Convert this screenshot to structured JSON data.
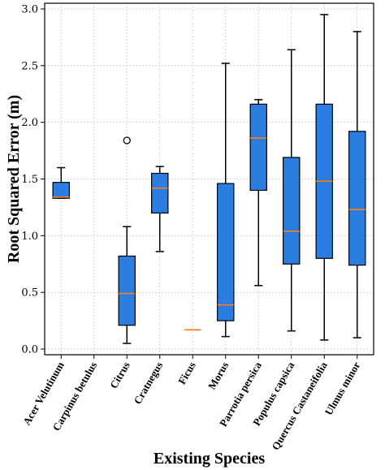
{
  "chart_data": {
    "type": "box",
    "title": "",
    "xlabel": "Existing Species",
    "ylabel": "Root Squared Error (m)",
    "ylim": [
      -0.05,
      3.05
    ],
    "yticks": [
      "0.0",
      "0.5",
      "1.0",
      "1.5",
      "2.0",
      "2.5",
      "3.0"
    ],
    "grid": true,
    "colors": {
      "box_fill": "#2b7de1",
      "median": "#ff7f0e",
      "grid": "#c8c8c8"
    },
    "categories": [
      "Acer Velutinum",
      "Carpinus betulus",
      "Citrus",
      "Cratnegus",
      "Ficus",
      "Morus",
      "Parrotia persica",
      "Populus capsica",
      "Quercus Castaneifolia",
      "Ulmus minor"
    ],
    "boxes": [
      {
        "whislo": 1.33,
        "q1": 1.33,
        "med": 1.34,
        "q3": 1.47,
        "whishi": 1.6,
        "fliers": []
      },
      null,
      {
        "whislo": 0.05,
        "q1": 0.21,
        "med": 0.49,
        "q3": 0.82,
        "whishi": 1.08,
        "fliers": [
          1.84
        ]
      },
      {
        "whislo": 0.86,
        "q1": 1.2,
        "med": 1.42,
        "q3": 1.55,
        "whishi": 1.61,
        "fliers": []
      },
      {
        "whislo": 0.17,
        "q1": 0.17,
        "med": 0.17,
        "q3": 0.17,
        "whishi": 0.17,
        "fliers": []
      },
      {
        "whislo": 0.11,
        "q1": 0.25,
        "med": 0.39,
        "q3": 1.46,
        "whishi": 2.52,
        "fliers": []
      },
      {
        "whislo": 0.56,
        "q1": 1.4,
        "med": 1.86,
        "q3": 2.16,
        "whishi": 2.2,
        "fliers": []
      },
      {
        "whislo": 0.16,
        "q1": 0.75,
        "med": 1.04,
        "q3": 1.69,
        "whishi": 2.64,
        "fliers": []
      },
      {
        "whislo": 0.08,
        "q1": 0.8,
        "med": 1.48,
        "q3": 2.16,
        "whishi": 2.95,
        "fliers": []
      },
      {
        "whislo": 0.1,
        "q1": 0.74,
        "med": 1.23,
        "q3": 1.92,
        "whishi": 2.8,
        "fliers": []
      }
    ]
  }
}
